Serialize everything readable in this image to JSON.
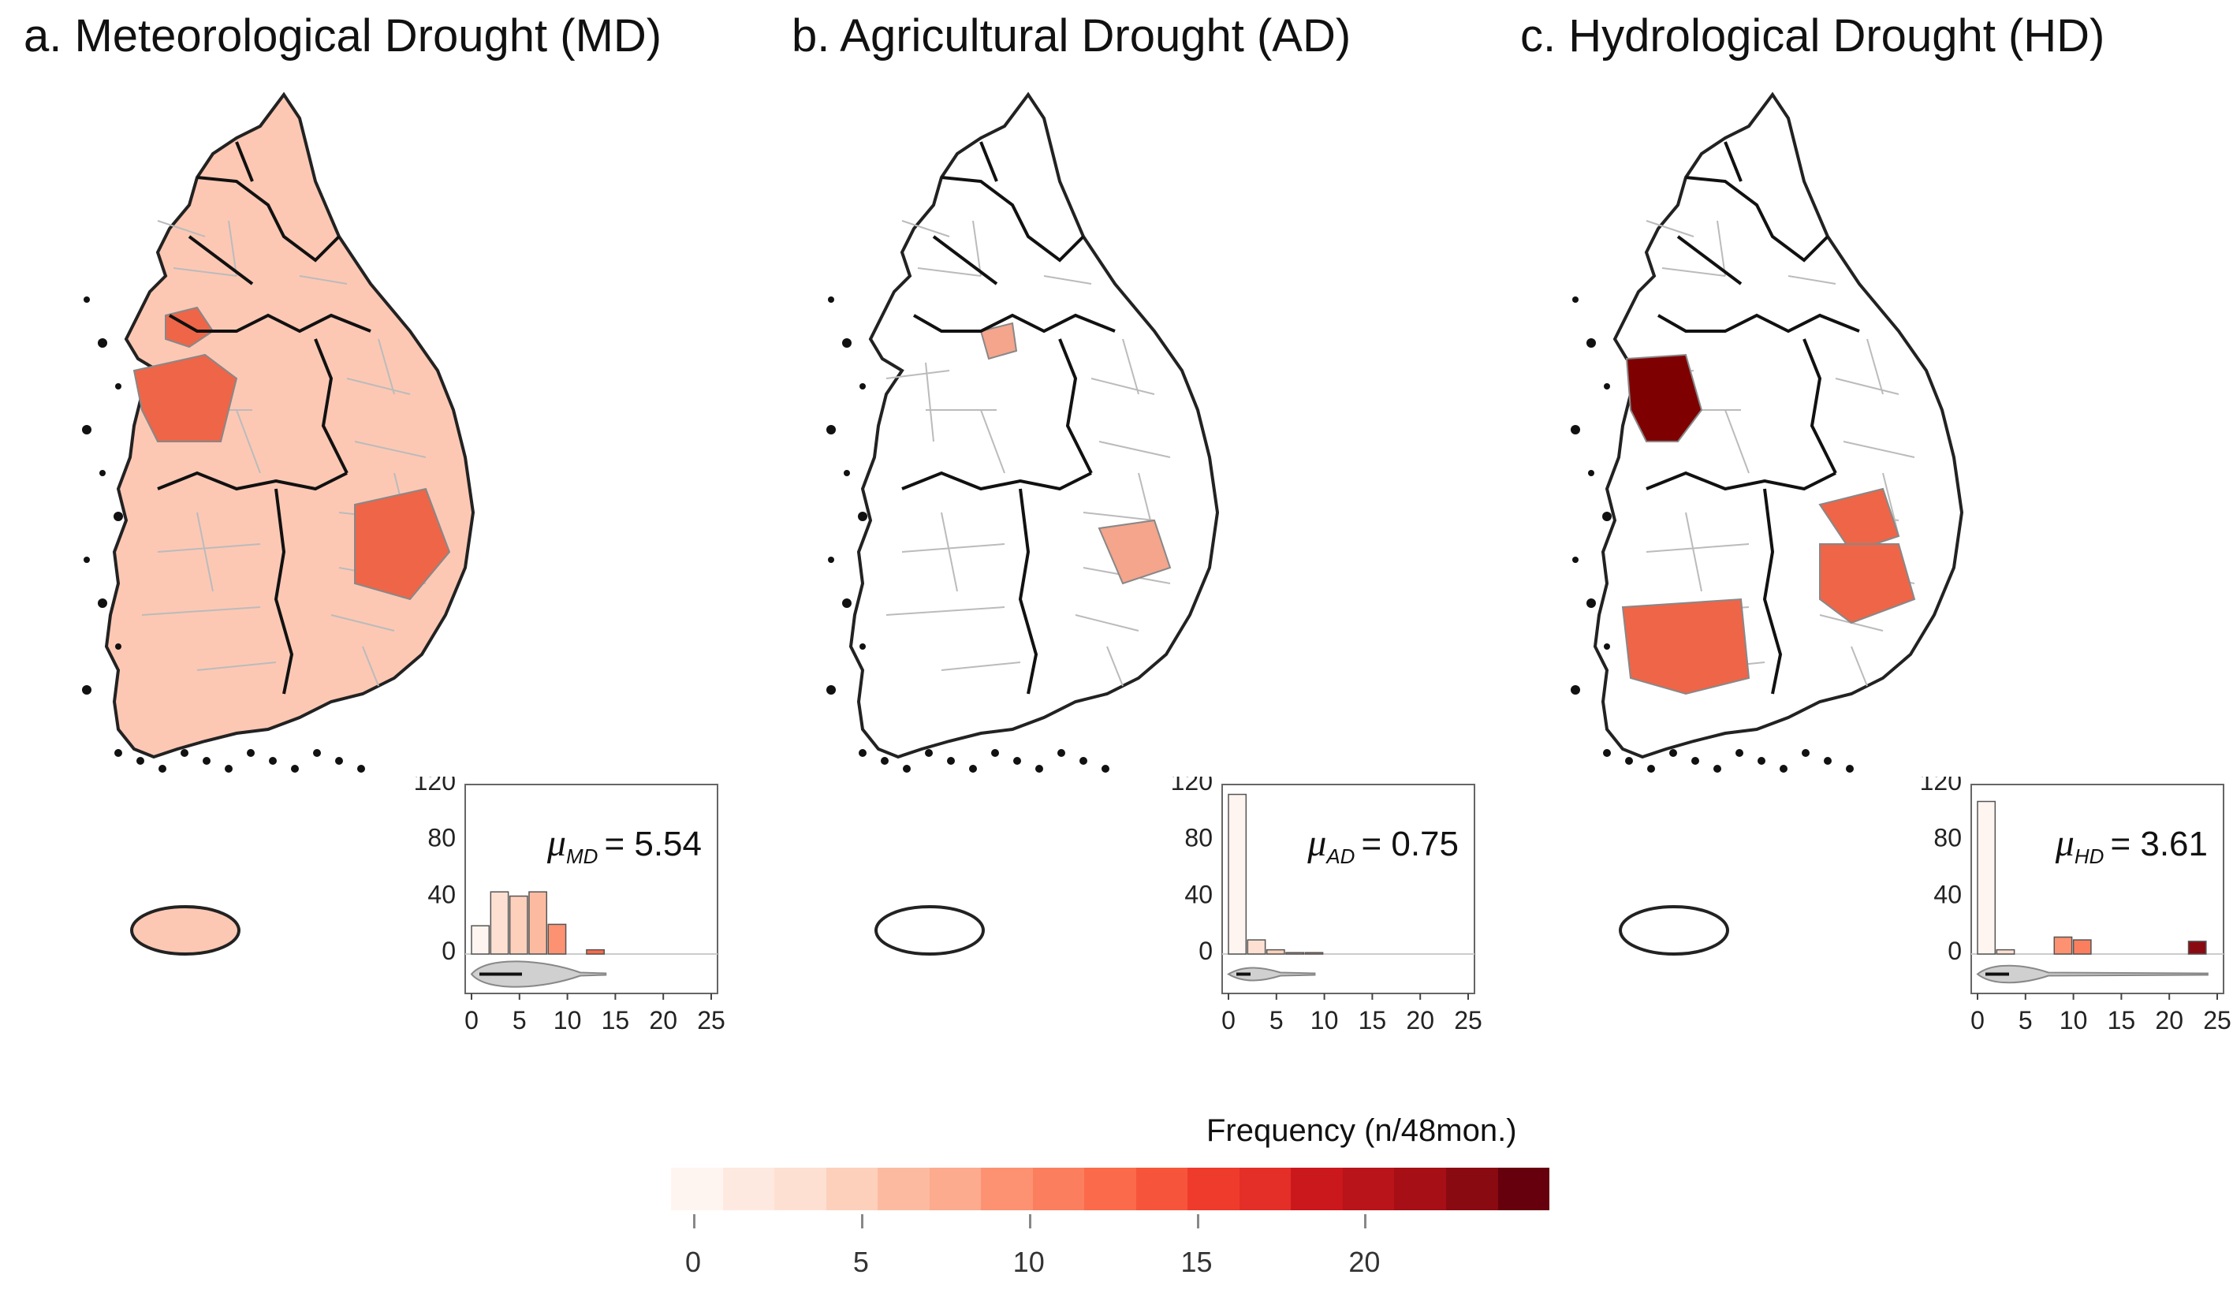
{
  "panels": [
    {
      "id": "a",
      "title": "a. Meteorological Drought (MD)",
      "mu_symbol": "μ",
      "mu_subscript": "MD",
      "mu_value": "= 5.54",
      "region_fill": "#f4a58c",
      "hotspot_fill": "#ef6548",
      "histogram_values": [
        20,
        44,
        41,
        44,
        21,
        0,
        3,
        0,
        0,
        0,
        0,
        0
      ],
      "violin_spread": 0.9
    },
    {
      "id": "b",
      "title": "b. Agricultural Drought (AD)",
      "mu_symbol": "μ",
      "mu_subscript": "AD",
      "mu_value": "= 0.75",
      "region_fill": "#ffffff",
      "hotspot_fill": "#f4a58c",
      "histogram_values": [
        113,
        10,
        3,
        1,
        1,
        0,
        0,
        0,
        0,
        0,
        0,
        0
      ],
      "violin_spread": 0.3
    },
    {
      "id": "c",
      "title": "c. Hydrological Drought (HD)",
      "mu_symbol": "μ",
      "mu_subscript": "HD",
      "mu_value": "= 3.61",
      "region_fill": "#ffffff",
      "hotspot_fill": "#ef6548",
      "histogram_values": [
        108,
        3,
        0,
        0,
        12,
        10,
        0,
        0,
        0,
        0,
        0,
        9
      ],
      "violin_spread": 0.5
    }
  ],
  "inset_axes": {
    "y_ticks": [
      "120",
      "80",
      "40",
      "0"
    ],
    "x_ticks": [
      "0",
      "5",
      "10",
      "15",
      "20",
      "25"
    ]
  },
  "colorbar": {
    "title": "Frequency (n/48mon.)",
    "tick_labels": [
      "0",
      "5",
      "10",
      "15",
      "20"
    ],
    "tick_values": [
      0,
      5,
      10,
      15,
      20
    ],
    "range": [
      0,
      25
    ],
    "colors": [
      "#fff5f0",
      "#fee9e0",
      "#fee0d2",
      "#fdd0bc",
      "#fcbba1",
      "#fcab8f",
      "#fc9272",
      "#fb7f5f",
      "#fb6a4a",
      "#f6553c",
      "#ef3b2c",
      "#e32f27",
      "#cb181d",
      "#b81419",
      "#a50f15",
      "#8a0a12",
      "#67000d"
    ]
  }
}
